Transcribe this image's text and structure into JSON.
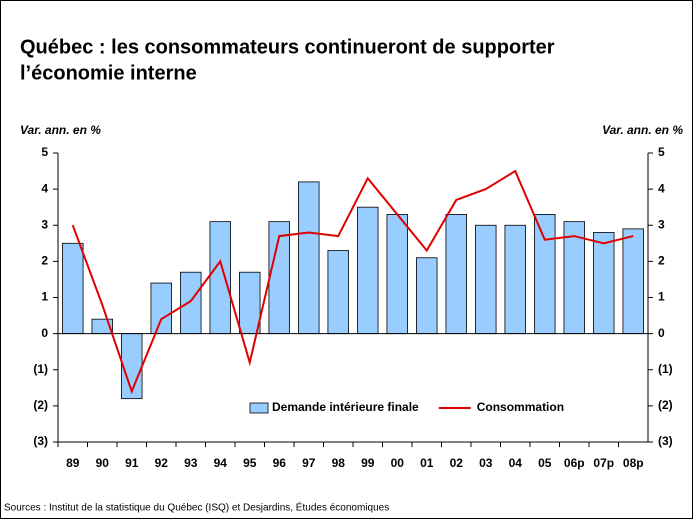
{
  "chart_data": {
    "type": "bar_line",
    "title": [
      "Québec : les consommateurs continueront de supporter",
      "l’économie interne"
    ],
    "y_label": "Var. ann. en %",
    "y2_label": "Var. ann. en %",
    "source": "Sources : Institut de la statistique du Québec (ISQ) et Desjardins, Études économiques",
    "categories": [
      "89",
      "90",
      "91",
      "92",
      "93",
      "94",
      "95",
      "96",
      "97",
      "98",
      "99",
      "00",
      "01",
      "02",
      "03",
      "04",
      "05",
      "06p",
      "07p",
      "08p"
    ],
    "series": [
      {
        "name": "Demande intérieure finale",
        "type": "bar",
        "color": "#99ccff",
        "values": [
          2.5,
          0.4,
          -1.8,
          1.4,
          1.7,
          3.1,
          1.7,
          3.1,
          4.2,
          2.3,
          3.5,
          3.3,
          2.1,
          3.3,
          3.0,
          3.0,
          3.3,
          3.1,
          2.8,
          2.9
        ]
      },
      {
        "name": "Consommation",
        "type": "line",
        "axis": "y2",
        "color": "#e00000",
        "values": [
          3.0,
          0.8,
          -1.6,
          0.4,
          0.9,
          2.0,
          -0.8,
          2.7,
          2.8,
          2.7,
          4.3,
          3.3,
          2.3,
          3.7,
          4.0,
          4.5,
          2.6,
          2.7,
          2.5,
          2.7
        ]
      }
    ],
    "ylim": [
      -3,
      5
    ],
    "yticks": [
      5,
      4,
      3,
      2,
      1,
      0,
      {
        "value": -1,
        "label": "(1)"
      },
      {
        "value": -2,
        "label": "(2)"
      },
      {
        "value": -3,
        "label": "(3)"
      }
    ],
    "y2lim": [
      -3,
      5
    ],
    "y2ticks": [
      5,
      4,
      3,
      2,
      1,
      0,
      {
        "value": -1,
        "label": "(1)"
      },
      {
        "value": -2,
        "label": "(2)"
      },
      {
        "value": -3,
        "label": "(3)"
      }
    ],
    "grid": false
  }
}
